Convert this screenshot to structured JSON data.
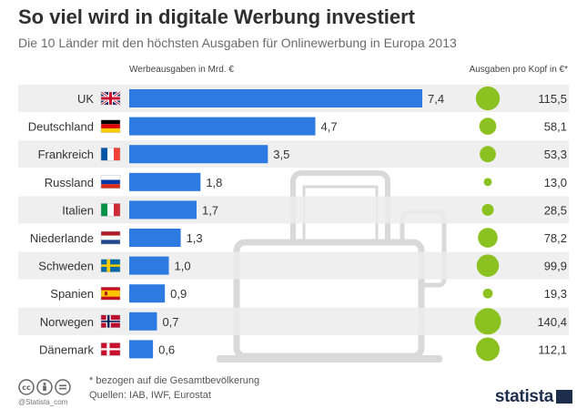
{
  "header": {
    "title": "So viel wird in digitale Werbung investiert",
    "subtitle": "Die 10 Länder mit den höchsten Ausgaben für Onlinewerbung in Europa 2013"
  },
  "chart_data": {
    "type": "bar",
    "title": "So viel wird in digitale Werbung investiert",
    "subtitle": "Die 10 Länder mit den höchsten Ausgaben für Onlinewerbung in Europa 2013",
    "bar_header": "Werbeausgaben in Mrd. €",
    "bubble_header": "Ausgaben pro Kopf in €*",
    "categories": [
      "UK",
      "Deutschland",
      "Frankreich",
      "Russland",
      "Italien",
      "Niederlande",
      "Schweden",
      "Spanien",
      "Norwegen",
      "Dänemark"
    ],
    "series": [
      {
        "name": "Werbeausgaben in Mrd. €",
        "values": [
          7.4,
          4.7,
          3.5,
          1.8,
          1.7,
          1.3,
          1.0,
          0.9,
          0.7,
          0.6
        ],
        "labels": [
          "7,4",
          "4,7",
          "3,5",
          "1,8",
          "1,7",
          "1,3",
          "1,0",
          "0,9",
          "0,7",
          "0,6"
        ],
        "color": "#2d7be0"
      },
      {
        "name": "Ausgaben pro Kopf in €*",
        "values": [
          115.5,
          58.1,
          53.3,
          13.0,
          28.5,
          78.2,
          99.9,
          19.3,
          140.4,
          112.1
        ],
        "labels": [
          "115,5",
          "58,1",
          "53,3",
          "13,0",
          "28,5",
          "78,2",
          "99,9",
          "19,3",
          "140,4",
          "112,1"
        ],
        "color": "#8cc122"
      }
    ],
    "flags": [
      "uk-flag-icon",
      "germany-flag-icon",
      "france-flag-icon",
      "russia-flag-icon",
      "italy-flag-icon",
      "netherlands-flag-icon",
      "sweden-flag-icon",
      "spain-flag-icon",
      "norway-flag-icon",
      "denmark-flag-icon"
    ],
    "row_stripe_color": "#ececec"
  },
  "footer": {
    "note": "* bezogen auf die Gesamtbevölkerung",
    "sources": "Quellen: IAB, IWF, Eurostat",
    "handle": "@Statista_com",
    "logo": "statista"
  }
}
